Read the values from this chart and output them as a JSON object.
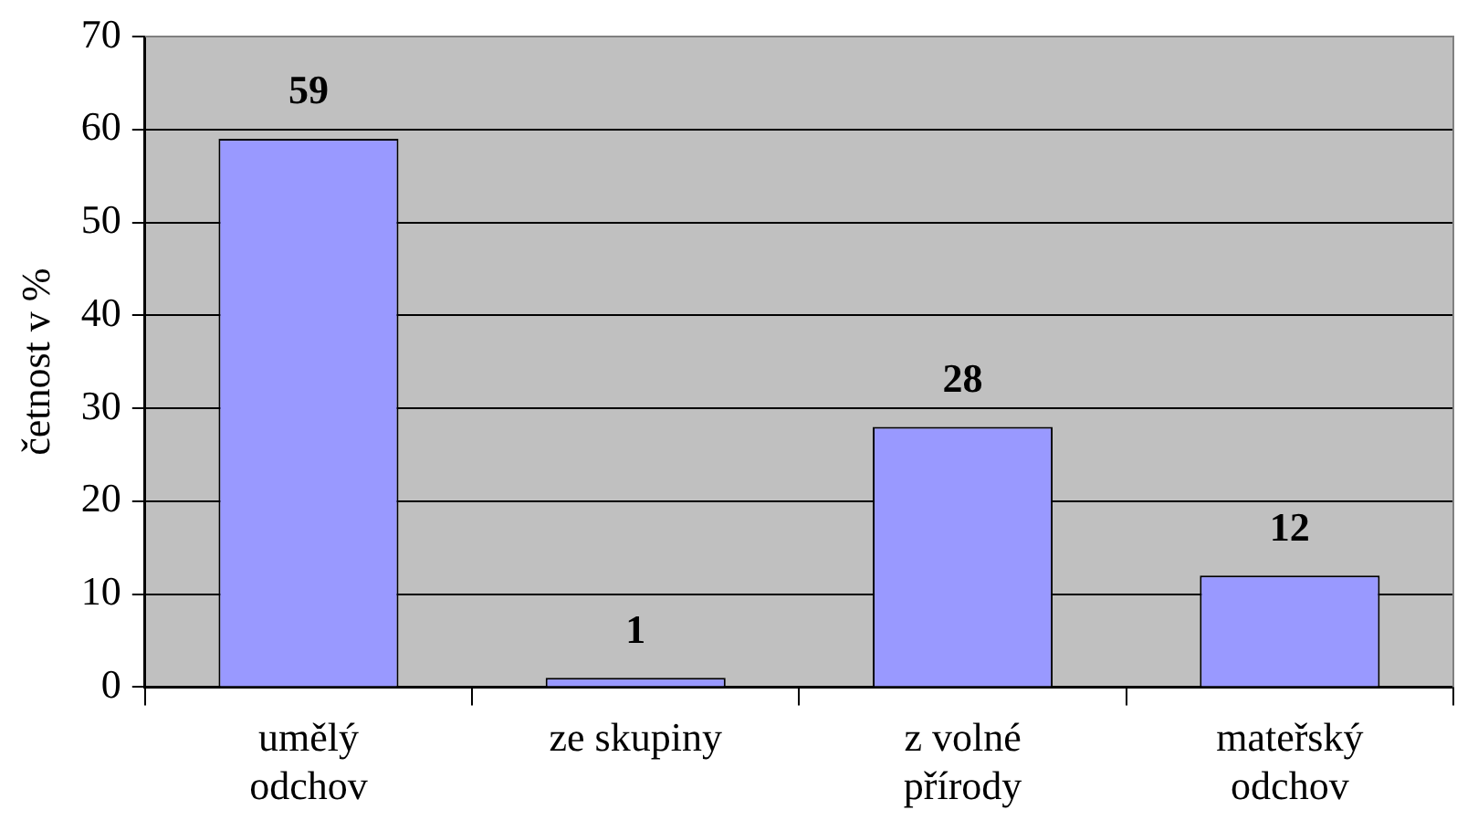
{
  "chart_data": {
    "type": "bar",
    "ylabel": "četnost v %",
    "categories": [
      "umělý odchov",
      "ze skupiny",
      "z volné přírody",
      "mateřský odchov"
    ],
    "values": [
      59,
      1,
      28,
      12
    ],
    "color": "#9999ff",
    "ylim": [
      0,
      70
    ],
    "yticks": [
      0,
      10,
      20,
      30,
      40,
      50,
      60,
      70
    ],
    "grid": "y",
    "legend": false,
    "data_labels": true
  }
}
